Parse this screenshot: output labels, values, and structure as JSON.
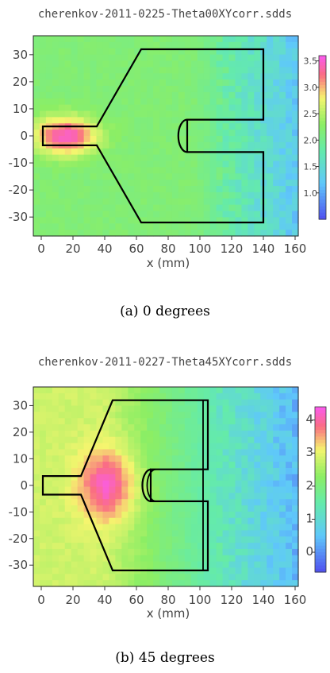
{
  "chart_data": [
    {
      "type": "heatmap",
      "title": "cherenkov-2011-0225-Theta00XYcorr.sdds",
      "xlabel": "x (mm)",
      "ylabel": "",
      "xlim": [
        -5,
        162
      ],
      "ylim": [
        -37,
        37
      ],
      "x_ticks": [
        "0",
        "20",
        "40",
        "60",
        "80",
        "100",
        "120",
        "140",
        "160"
      ],
      "y_ticks": [
        "30",
        "20",
        "10",
        "0",
        "-10",
        "-20",
        "-30"
      ],
      "colorbar": {
        "ticks": [
          "3.5",
          "3.0",
          "2.5",
          "2.0",
          "1.5",
          "1.0"
        ],
        "tick_values": [
          3.5,
          3.0,
          2.5,
          2.0,
          1.5,
          1.0
        ],
        "range": [
          0.5,
          3.6
        ]
      },
      "hotspot": {
        "x_mm": 15,
        "y_mm": 0
      },
      "outline_mm": [
        [
          1,
          3.5
        ],
        [
          35,
          3.5
        ],
        [
          63,
          32
        ],
        [
          140,
          32
        ],
        [
          140,
          6
        ],
        [
          92,
          6
        ],
        [
          92,
          -6
        ],
        [
          140,
          -6
        ],
        [
          140,
          -32
        ],
        [
          63,
          -32
        ],
        [
          35,
          -3.5
        ],
        [
          1,
          -3.5
        ]
      ],
      "caption": "(a)  0 degrees"
    },
    {
      "type": "heatmap",
      "title": "cherenkov-2011-0227-Theta45XYcorr.sdds",
      "xlabel": "x (mm)",
      "ylabel": "",
      "xlim": [
        -5,
        162
      ],
      "ylim": [
        -38,
        37
      ],
      "x_ticks": [
        "0",
        "20",
        "40",
        "60",
        "80",
        "100",
        "120",
        "140",
        "160"
      ],
      "y_ticks": [
        "30",
        "20",
        "10",
        "0",
        "-10",
        "-20",
        "-30"
      ],
      "colorbar": {
        "ticks": [
          "4",
          "3",
          "2",
          "1",
          "0"
        ],
        "tick_values": [
          4,
          3,
          2,
          1,
          0
        ],
        "range": [
          -0.6,
          4.4
        ]
      },
      "hotspot": {
        "x_mm": 42,
        "y_mm": 0
      },
      "outline_mm": [
        [
          1,
          3.5
        ],
        [
          25,
          3.5
        ],
        [
          45,
          32
        ],
        [
          105,
          32
        ],
        [
          105,
          6
        ],
        [
          69,
          6
        ],
        [
          69,
          -6
        ],
        [
          105,
          -6
        ],
        [
          105,
          -32
        ],
        [
          45,
          -32
        ],
        [
          25,
          -3.5
        ],
        [
          1,
          -3.5
        ]
      ],
      "caption": "(b)  45 degrees"
    }
  ]
}
